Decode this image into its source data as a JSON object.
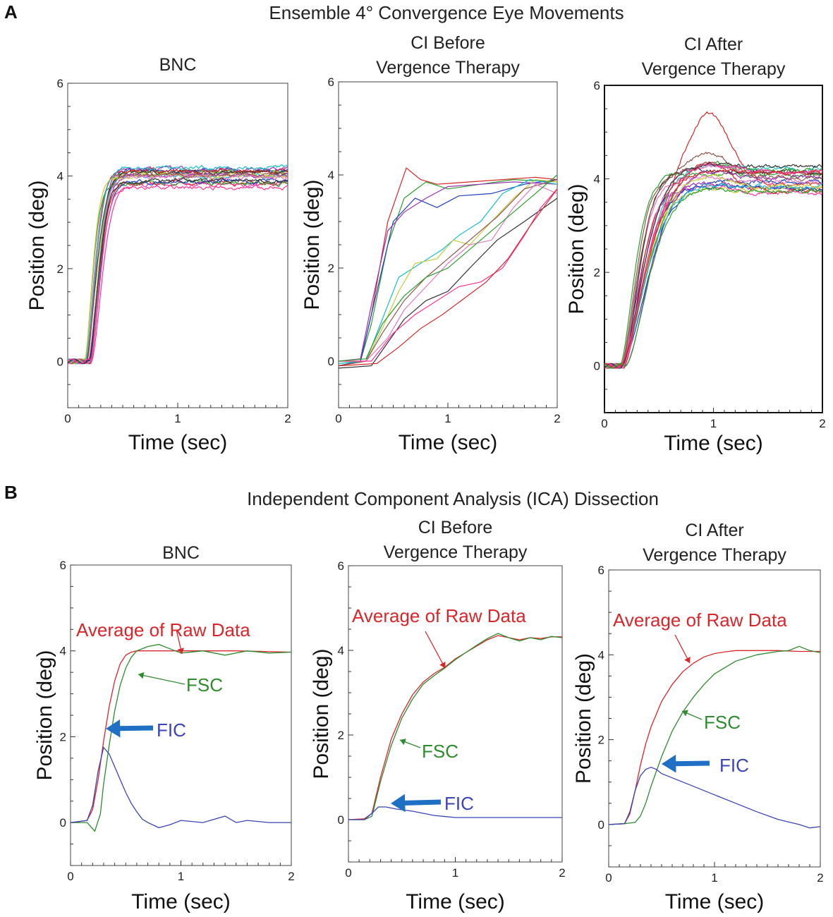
{
  "panel_a": {
    "label": "A",
    "title": "Ensemble 4° Convergence Eye Movements"
  },
  "panel_b": {
    "label": "B",
    "title": "Independent Component Analysis (ICA)  Dissection"
  },
  "colors": {
    "raw": "#d9262b",
    "fsc": "#2e8b2e",
    "fic": "#3b44b8",
    "fic_arrow": "#1f6fc4",
    "trace_palette": [
      "#d62728",
      "#2ca02c",
      "#1f3fbf",
      "#9b30b8",
      "#17becf",
      "#c9c93a",
      "#8c564b",
      "#e377c2",
      "#333333",
      "#ff3399"
    ]
  },
  "chart_data": [
    {
      "id": "a1",
      "type": "line",
      "title": "BNC",
      "xlabel": "Time (sec)",
      "ylabel": "Position (deg)",
      "xlim": [
        0,
        2
      ],
      "ylim": [
        -1,
        6
      ],
      "xticks": [
        "0",
        "1",
        "2"
      ],
      "yticks": [
        "0",
        "2",
        "4",
        "6"
      ],
      "ytick_values": [
        0,
        2,
        4,
        6
      ],
      "ensemble": {
        "count": 20,
        "mode": "bnc",
        "final_range": [
          3.75,
          4.2
        ],
        "onset_range": [
          0.15,
          0.22
        ],
        "tau_range": [
          0.09,
          0.13
        ]
      },
      "series": []
    },
    {
      "id": "a2",
      "type": "line",
      "title": "CI Before\nVergence Therapy",
      "xlabel": "Time (sec)",
      "ylabel": "Position (deg)",
      "xlim": [
        0,
        2
      ],
      "ylim": [
        -1,
        6
      ],
      "xticks": [
        "0",
        "1",
        "2"
      ],
      "yticks": [
        "0",
        "2",
        "4",
        "6"
      ],
      "ytick_values": [
        0,
        2,
        4,
        6
      ],
      "series": [
        {
          "name": "t1",
          "x": [
            0,
            0.2,
            0.3,
            0.45,
            0.62,
            0.75,
            0.9,
            1.2,
            1.5,
            1.8,
            2.0
          ],
          "y": [
            -0.1,
            0.0,
            1.0,
            3.0,
            4.15,
            3.9,
            3.8,
            3.85,
            3.9,
            3.95,
            3.9
          ]
        },
        {
          "name": "t2",
          "x": [
            0,
            0.2,
            0.3,
            0.45,
            0.6,
            0.8,
            1.0,
            1.3,
            1.6,
            2.0
          ],
          "y": [
            -0.05,
            0.0,
            0.8,
            2.5,
            3.5,
            3.85,
            3.7,
            3.8,
            3.9,
            3.85
          ]
        },
        {
          "name": "t3",
          "x": [
            0,
            0.2,
            0.35,
            0.5,
            0.7,
            0.9,
            1.1,
            1.4,
            1.7,
            2.0
          ],
          "y": [
            -0.1,
            0.0,
            1.5,
            3.0,
            3.5,
            3.3,
            3.55,
            3.6,
            3.8,
            3.9
          ]
        },
        {
          "name": "t4",
          "x": [
            0,
            0.2,
            0.3,
            0.45,
            0.6,
            0.8,
            1.0,
            1.3,
            1.6,
            2.0
          ],
          "y": [
            0.0,
            0.05,
            1.2,
            2.8,
            3.2,
            3.5,
            3.75,
            3.8,
            3.85,
            3.8
          ]
        },
        {
          "name": "t5",
          "x": [
            0,
            0.25,
            0.4,
            0.55,
            0.75,
            0.95,
            1.1,
            1.3,
            1.5,
            1.75,
            2.0
          ],
          "y": [
            -0.05,
            0.0,
            0.9,
            1.8,
            2.1,
            2.4,
            2.7,
            3.0,
            3.6,
            3.9,
            3.8
          ]
        },
        {
          "name": "t6",
          "x": [
            0,
            0.25,
            0.4,
            0.55,
            0.7,
            0.9,
            1.05,
            1.2,
            1.4,
            1.6,
            1.8,
            2.0
          ],
          "y": [
            0.0,
            0.0,
            0.7,
            1.5,
            2.1,
            2.2,
            2.6,
            2.5,
            3.0,
            3.5,
            3.9,
            3.85
          ]
        },
        {
          "name": "t7",
          "x": [
            0,
            0.25,
            0.4,
            0.6,
            0.8,
            1.0,
            1.2,
            1.45,
            1.7,
            2.0
          ],
          "y": [
            -0.1,
            0.0,
            0.6,
            1.3,
            1.8,
            2.2,
            2.6,
            3.1,
            3.7,
            3.9
          ]
        },
        {
          "name": "t8",
          "x": [
            0,
            0.25,
            0.45,
            0.6,
            0.8,
            1.0,
            1.2,
            1.4,
            1.6,
            1.8,
            2.0
          ],
          "y": [
            0.0,
            0.0,
            0.5,
            1.1,
            1.6,
            2.1,
            2.5,
            2.6,
            3.3,
            3.8,
            3.6
          ]
        },
        {
          "name": "t9",
          "x": [
            0,
            0.3,
            0.45,
            0.6,
            0.8,
            1.0,
            1.2,
            1.45,
            1.7,
            2.0
          ],
          "y": [
            -0.15,
            -0.1,
            0.4,
            0.9,
            1.3,
            1.5,
            2.0,
            2.6,
            3.0,
            3.5
          ]
        },
        {
          "name": "t10",
          "x": [
            0,
            0.3,
            0.5,
            0.7,
            0.9,
            1.1,
            1.3,
            1.5,
            1.7,
            1.85,
            2.0
          ],
          "y": [
            0.0,
            0.0,
            0.6,
            1.0,
            1.3,
            1.6,
            1.7,
            2.0,
            2.7,
            3.3,
            3.7
          ]
        },
        {
          "name": "t11",
          "x": [
            0,
            0.35,
            0.55,
            0.75,
            0.95,
            1.15,
            1.35,
            1.55,
            1.75,
            2.0
          ],
          "y": [
            -0.1,
            -0.05,
            0.3,
            0.7,
            1.0,
            1.35,
            1.7,
            2.2,
            2.9,
            3.7
          ]
        },
        {
          "name": "t12",
          "x": [
            0,
            0.25,
            0.4,
            0.6,
            0.8,
            1.0,
            1.2,
            1.4,
            1.6,
            1.8,
            2.0
          ],
          "y": [
            0.0,
            0.05,
            0.8,
            1.4,
            1.8,
            2.0,
            2.4,
            2.8,
            3.2,
            3.6,
            4.0
          ]
        }
      ]
    },
    {
      "id": "a3",
      "type": "line",
      "title": "CI After\nVergence Therapy",
      "xlabel": "Time (sec)",
      "ylabel": "Position (deg)",
      "xlim": [
        0,
        2
      ],
      "ylim": [
        -1,
        6
      ],
      "xticks": [
        "0",
        "1",
        "2"
      ],
      "yticks": [
        "0",
        "2",
        "4",
        "6"
      ],
      "ytick_values": [
        0,
        2,
        4,
        6
      ],
      "ensemble": {
        "count": 22,
        "mode": "ci_after",
        "final_range": [
          3.7,
          4.3
        ],
        "onset_range": [
          0.14,
          0.2
        ],
        "tau_range": [
          0.16,
          0.32
        ],
        "peak_max": 5.4
      },
      "series": []
    },
    {
      "id": "b1",
      "type": "line",
      "title": "BNC",
      "xlabel": "Time (sec)",
      "ylabel": "Position (deg)",
      "xlim": [
        0,
        2
      ],
      "ylim": [
        -1,
        6
      ],
      "xticks": [
        "0",
        "1",
        "2"
      ],
      "yticks": [
        "0",
        "2",
        "4",
        "6"
      ],
      "ytick_values": [
        0,
        2,
        4,
        6
      ],
      "series": [
        {
          "name": "Average of Raw Data",
          "role": "raw",
          "x": [
            0,
            0.15,
            0.2,
            0.25,
            0.3,
            0.35,
            0.4,
            0.45,
            0.5,
            0.55,
            0.6,
            0.7,
            0.8,
            1.0,
            1.5,
            2.0
          ],
          "y": [
            0.0,
            0.05,
            0.3,
            1.0,
            1.9,
            2.7,
            3.3,
            3.7,
            3.9,
            3.97,
            4.0,
            4.0,
            4.0,
            4.0,
            4.0,
            3.97
          ]
        },
        {
          "name": "FSC",
          "role": "fsc",
          "x": [
            0,
            0.15,
            0.22,
            0.27,
            0.3,
            0.35,
            0.4,
            0.45,
            0.5,
            0.55,
            0.6,
            0.7,
            0.8,
            0.9,
            1.0,
            1.2,
            1.4,
            1.6,
            1.8,
            2.0
          ],
          "y": [
            0.0,
            0.0,
            -0.2,
            0.2,
            0.9,
            1.8,
            2.6,
            3.2,
            3.6,
            3.85,
            4.0,
            4.1,
            4.15,
            4.05,
            3.95,
            4.0,
            3.9,
            4.0,
            3.95,
            3.97
          ]
        },
        {
          "name": "FIC",
          "role": "fic",
          "x": [
            0,
            0.15,
            0.2,
            0.25,
            0.3,
            0.35,
            0.4,
            0.45,
            0.5,
            0.55,
            0.6,
            0.65,
            0.7,
            0.8,
            0.9,
            1.0,
            1.2,
            1.4,
            1.5,
            1.6,
            1.8,
            2.0
          ],
          "y": [
            0.0,
            0.05,
            0.4,
            1.2,
            1.75,
            1.6,
            1.3,
            1.0,
            0.7,
            0.45,
            0.25,
            0.08,
            0.0,
            -0.12,
            -0.05,
            0.05,
            0.0,
            0.15,
            0.0,
            0.05,
            0.0,
            0.0
          ]
        }
      ],
      "annotations": {
        "raw_label": "Average of Raw Data",
        "fsc_label": "FSC",
        "fic_label": "FIC"
      }
    },
    {
      "id": "b2",
      "type": "line",
      "title": "CI Before\nVergence Therapy",
      "xlabel": "Time (sec)",
      "ylabel": "Position (deg)",
      "xlim": [
        0,
        2
      ],
      "ylim": [
        -1,
        6
      ],
      "xticks": [
        "0",
        "1",
        "2"
      ],
      "yticks": [
        "0",
        "2",
        "4",
        "6"
      ],
      "ytick_values": [
        0,
        2,
        4,
        6
      ],
      "series": [
        {
          "name": "Average of Raw Data",
          "role": "raw",
          "x": [
            0,
            0.15,
            0.22,
            0.3,
            0.4,
            0.5,
            0.6,
            0.7,
            0.8,
            0.9,
            1.0,
            1.1,
            1.2,
            1.3,
            1.4,
            1.5,
            1.6,
            1.7,
            1.8,
            1.9,
            2.0
          ],
          "y": [
            0.0,
            0.02,
            0.15,
            1.0,
            1.9,
            2.5,
            2.95,
            3.25,
            3.45,
            3.6,
            3.8,
            3.95,
            4.1,
            4.25,
            4.35,
            4.3,
            4.25,
            4.3,
            4.28,
            4.32,
            4.32
          ]
        },
        {
          "name": "FSC",
          "role": "fsc",
          "x": [
            0,
            0.15,
            0.22,
            0.3,
            0.4,
            0.5,
            0.6,
            0.7,
            0.8,
            0.9,
            1.0,
            1.1,
            1.2,
            1.3,
            1.4,
            1.5,
            1.6,
            1.7,
            1.8,
            1.9,
            2.0
          ],
          "y": [
            0.0,
            0.0,
            0.08,
            0.9,
            1.75,
            2.4,
            2.85,
            3.2,
            3.4,
            3.58,
            3.78,
            3.95,
            4.12,
            4.28,
            4.4,
            4.3,
            4.22,
            4.3,
            4.25,
            4.33,
            4.3
          ]
        },
        {
          "name": "FIC",
          "role": "fic",
          "x": [
            0,
            0.15,
            0.22,
            0.28,
            0.35,
            0.45,
            0.6,
            0.8,
            1.0,
            1.2,
            1.5,
            1.8,
            2.0
          ],
          "y": [
            0.0,
            0.0,
            0.15,
            0.3,
            0.3,
            0.25,
            0.2,
            0.1,
            0.05,
            0.05,
            0.05,
            0.05,
            0.05
          ]
        }
      ],
      "annotations": {
        "raw_label": "Average of Raw Data",
        "fsc_label": "FSC",
        "fic_label": "FIC"
      }
    },
    {
      "id": "b3",
      "type": "line",
      "title": "CI After\nVergence Therapy",
      "xlabel": "Time (sec)",
      "ylabel": "Position (deg)",
      "xlim": [
        0,
        2
      ],
      "ylim": [
        -1,
        6
      ],
      "xticks": [
        "0",
        "1",
        "2"
      ],
      "yticks": [
        "0",
        "2",
        "4",
        "6"
      ],
      "ytick_values": [
        0,
        2,
        4,
        6
      ],
      "series": [
        {
          "name": "Average of Raw Data",
          "role": "raw",
          "x": [
            0,
            0.15,
            0.2,
            0.25,
            0.3,
            0.35,
            0.4,
            0.5,
            0.6,
            0.7,
            0.8,
            0.9,
            1.0,
            1.1,
            1.2,
            1.4,
            1.6,
            1.8,
            2.0
          ],
          "y": [
            0.0,
            0.02,
            0.25,
            0.8,
            1.4,
            1.9,
            2.3,
            2.9,
            3.3,
            3.6,
            3.8,
            3.95,
            4.03,
            4.07,
            4.1,
            4.1,
            4.1,
            4.08,
            4.08
          ]
        },
        {
          "name": "FSC",
          "role": "fsc",
          "x": [
            0,
            0.15,
            0.25,
            0.3,
            0.35,
            0.4,
            0.5,
            0.6,
            0.7,
            0.8,
            0.9,
            1.0,
            1.1,
            1.2,
            1.4,
            1.6,
            1.7,
            1.8,
            1.9,
            2.0
          ],
          "y": [
            0.0,
            0.02,
            0.05,
            0.2,
            0.5,
            0.9,
            1.6,
            2.2,
            2.65,
            3.0,
            3.3,
            3.55,
            3.7,
            3.85,
            4.0,
            4.08,
            4.1,
            4.2,
            4.1,
            4.05
          ]
        },
        {
          "name": "FIC",
          "role": "fic",
          "x": [
            0,
            0.15,
            0.2,
            0.25,
            0.3,
            0.35,
            0.4,
            0.45,
            0.5,
            0.6,
            0.7,
            0.8,
            1.0,
            1.2,
            1.4,
            1.6,
            1.8,
            1.9,
            2.0
          ],
          "y": [
            0.0,
            0.02,
            0.3,
            0.8,
            1.15,
            1.3,
            1.35,
            1.3,
            1.2,
            1.1,
            1.0,
            0.9,
            0.7,
            0.5,
            0.3,
            0.12,
            0.0,
            -0.08,
            -0.05
          ]
        }
      ],
      "annotations": {
        "raw_label": "Average of Raw Data",
        "fsc_label": "FSC",
        "fic_label": "FIC"
      }
    }
  ]
}
